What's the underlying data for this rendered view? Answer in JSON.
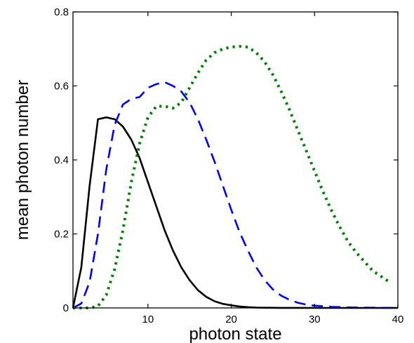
{
  "chart_data": {
    "type": "line",
    "title": "",
    "xlabel": "photon state",
    "ylabel": "mean photon number",
    "xlim": [
      1,
      40
    ],
    "ylim": [
      0,
      0.8
    ],
    "xticks": [
      10,
      20,
      30,
      40
    ],
    "yticks": [
      0,
      0.2,
      0.4,
      0.6,
      0.8
    ],
    "xtick_labels": [
      "10",
      "20",
      "30",
      "40"
    ],
    "ytick_labels": [
      "0",
      "0.2",
      "0.4",
      "0.6",
      "0.8"
    ],
    "grid": false,
    "legend": null,
    "series": [
      {
        "style": "solid",
        "color": "#000000",
        "x": [
          1,
          2,
          3,
          4,
          5,
          6,
          7,
          8,
          9,
          10,
          11,
          12,
          13,
          14,
          15,
          16,
          17,
          18,
          19,
          20,
          21,
          22,
          23,
          24,
          25,
          26,
          28,
          30,
          35,
          40
        ],
        "y": [
          0.0,
          0.11,
          0.33,
          0.51,
          0.515,
          0.51,
          0.49,
          0.455,
          0.405,
          0.34,
          0.275,
          0.21,
          0.155,
          0.11,
          0.075,
          0.048,
          0.03,
          0.018,
          0.011,
          0.007,
          0.004,
          0.002,
          0.001,
          0.0006,
          0.0003,
          0.0002,
          0.0001,
          0.0,
          0.0,
          0.0
        ]
      },
      {
        "style": "dashed",
        "color": "#0000ff",
        "x": [
          1,
          2,
          3,
          4,
          5,
          6,
          7,
          8,
          9,
          10,
          11,
          12,
          13,
          14,
          15,
          16,
          17,
          18,
          19,
          20,
          21,
          22,
          23,
          24,
          25,
          26,
          27,
          28,
          29,
          30,
          32,
          34,
          36,
          38,
          40
        ],
        "y": [
          0.0,
          0.012,
          0.07,
          0.2,
          0.375,
          0.495,
          0.55,
          0.565,
          0.57,
          0.595,
          0.605,
          0.61,
          0.6,
          0.585,
          0.555,
          0.51,
          0.455,
          0.395,
          0.33,
          0.265,
          0.205,
          0.155,
          0.11,
          0.075,
          0.05,
          0.033,
          0.022,
          0.014,
          0.009,
          0.006,
          0.003,
          0.0015,
          0.0007,
          0.0003,
          0.0001
        ]
      },
      {
        "style": "dotted",
        "color": "#008000",
        "x": [
          1,
          2,
          3,
          4,
          5,
          6,
          7,
          8,
          9,
          10,
          11,
          12,
          13,
          14,
          15,
          16,
          17,
          18,
          19,
          20,
          21,
          22,
          23,
          24,
          25,
          26,
          27,
          28,
          29,
          30,
          31,
          32,
          33,
          34,
          35,
          36,
          37,
          38,
          39
        ],
        "y": [
          0.0,
          0.0,
          0.0,
          0.005,
          0.035,
          0.105,
          0.21,
          0.34,
          0.445,
          0.515,
          0.545,
          0.545,
          0.54,
          0.555,
          0.595,
          0.635,
          0.67,
          0.69,
          0.7,
          0.705,
          0.707,
          0.705,
          0.69,
          0.665,
          0.63,
          0.585,
          0.535,
          0.48,
          0.425,
          0.37,
          0.315,
          0.265,
          0.22,
          0.18,
          0.15,
          0.125,
          0.1,
          0.085,
          0.07
        ]
      }
    ]
  }
}
